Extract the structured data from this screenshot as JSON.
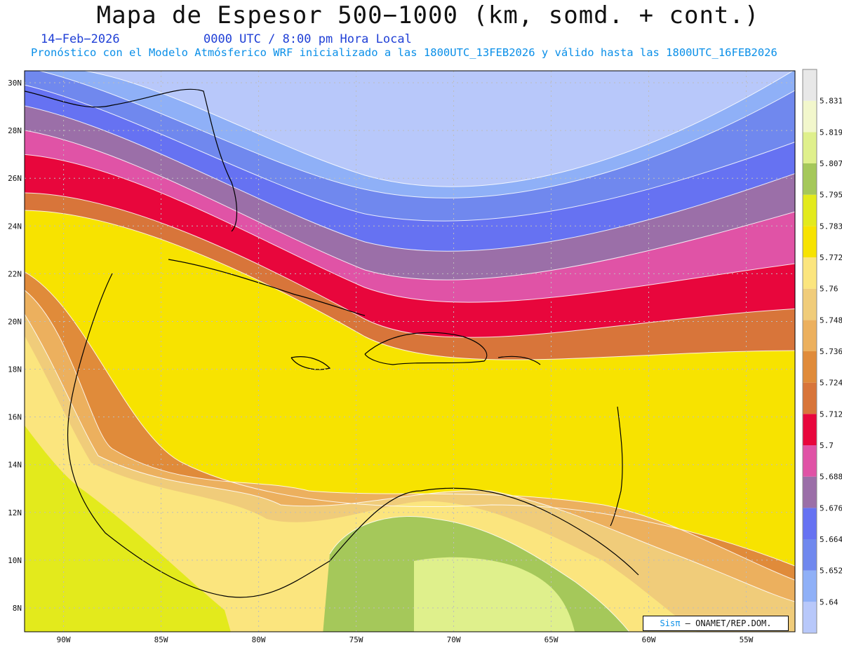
{
  "title": "Mapa de Espesor 500−1000 (km, somd. + cont.)",
  "date": "14−Feb−2026",
  "time": "0000 UTC / 8:00 pm Hora Local",
  "subtitle": "Pronóstico con el Modelo Atmósferico WRF inicializado a las 1800UTC_13FEB2026 y válido hasta las  1800UTC_16FEB2026",
  "credit": {
    "logo": "Sisπ",
    "text": "– ONAMET/REP.DOM."
  },
  "lat_labels": [
    "30N",
    "28N",
    "26N",
    "24N",
    "22N",
    "20N",
    "18N",
    "16N",
    "14N",
    "12N",
    "10N",
    "8N"
  ],
  "lon_labels": [
    "90W",
    "85W",
    "80W",
    "75W",
    "70W",
    "65W",
    "60W",
    "55W"
  ],
  "colorbar": {
    "values": [
      "5.64",
      "5.652",
      "5.664",
      "5.676",
      "5.688",
      "5.7",
      "5.712",
      "5.724",
      "5.736",
      "5.748",
      "5.76",
      "5.772",
      "5.783",
      "5.795",
      "5.807",
      "5.819",
      "5.831"
    ],
    "colors": [
      "#b8c8fa",
      "#8fb0f7",
      "#7088ee",
      "#6672f2",
      "#9b6fa8",
      "#e053a6",
      "#e8063c",
      "#d8753a",
      "#e08b3a",
      "#ecb05e",
      "#f0cc7a",
      "#fbe57e",
      "#f7e300",
      "#e3ea1c",
      "#a5c85a",
      "#dff08c",
      "#f2f7cc",
      "#e8e8e8"
    ]
  },
  "chart_data": {
    "type": "heatmap",
    "variable": "Espesor 500-1000 (km)",
    "latitude_range": [
      7,
      30.5
    ],
    "longitude_range": [
      -92,
      -52.5
    ],
    "levels": [
      5.64,
      5.652,
      5.664,
      5.676,
      5.688,
      5.7,
      5.712,
      5.724,
      5.736,
      5.748,
      5.76,
      5.772,
      5.783,
      5.795,
      5.807,
      5.819,
      5.831
    ]
  }
}
